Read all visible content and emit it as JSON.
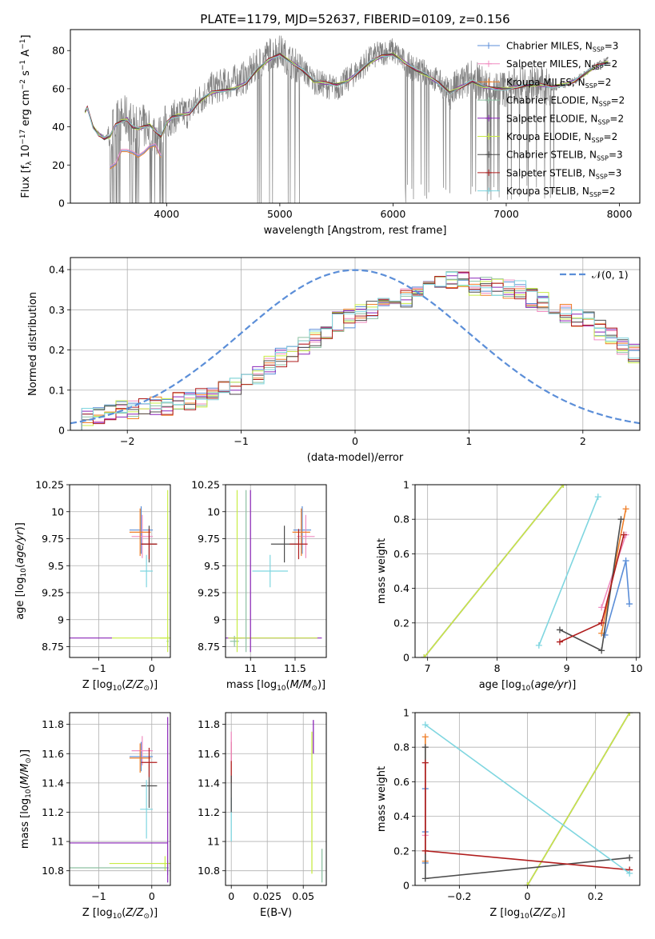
{
  "figure": {
    "title": "PLATE=1179, MJD=52637, FIBERID=0109, z=0.156",
    "colors": {
      "Chabrier MILES": "#5b8ed8",
      "Salpeter MILES": "#f08cc0",
      "Kroupa MILES": "#ef7f28",
      "Chabrier ELODIE": "#8dc0a2",
      "Salpeter ELODIE": "#8a25b8",
      "Kroupa ELODIE": "#c8ec45",
      "Chabrier STELIB": "#4d4d4d",
      "Salpeter STELIB": "#b01d1d",
      "Kroupa STELIB": "#7fd6e0"
    }
  },
  "chart_data": [
    {
      "id": "spectrum",
      "type": "line",
      "title": "PLATE=1179, MJD=52637, FIBERID=0109, z=0.156",
      "xlabel": "wavelength [Angstrom, rest frame]",
      "ylabel": "Flux [f_λ 10^-17 erg cm^-2 s^-1 A^-1]",
      "xlim": [
        3150,
        8180
      ],
      "ylim": [
        0,
        91
      ],
      "xticks": [
        4000,
        5000,
        6000,
        7000,
        8000
      ],
      "yticks": [
        0,
        20,
        40,
        60,
        80
      ],
      "grid": false,
      "legend_position": "top-right",
      "legend": [
        {
          "label": "Chabrier MILES, N_SSP=3",
          "color": "#5b8ed8"
        },
        {
          "label": "Salpeter MILES, N_SSP=2",
          "color": "#f08cc0"
        },
        {
          "label": "Kroupa MILES, N_SSP=2",
          "color": "#ef7f28"
        },
        {
          "label": "Chabrier ELODIE, N_SSP=2",
          "color": "#8dc0a2"
        },
        {
          "label": "Salpeter ELODIE, N_SSP=2",
          "color": "#8a25b8"
        },
        {
          "label": "Kroupa ELODIE, N_SSP=2",
          "color": "#c8ec45"
        },
        {
          "label": "Chabrier STELIB, N_SSP=3",
          "color": "#4d4d4d"
        },
        {
          "label": "Salpeter STELIB, N_SSP=3",
          "color": "#b01d1d"
        },
        {
          "label": "Kroupa STELIB, N_SSP=2",
          "color": "#7fd6e0"
        }
      ],
      "data_spectrum": {
        "color": "#808080",
        "x": [
          3280,
          3300,
          3350,
          3400,
          3450,
          3500,
          3550,
          3600,
          3650,
          3700,
          3750,
          3800,
          3850,
          3900,
          3950,
          4000,
          4050,
          4100,
          4200,
          4300,
          4400,
          4500,
          4600,
          4700,
          4800,
          4900,
          5000,
          5100,
          5200,
          5300,
          5400,
          5500,
          5600,
          5700,
          5800,
          5900,
          6000,
          6100,
          6200,
          6300,
          6400,
          6500,
          6600,
          6700,
          6800,
          6900,
          7000,
          7100,
          7200,
          7300,
          7400,
          7500,
          7600,
          7700,
          7800,
          7860,
          7900
        ],
        "y": [
          48,
          50,
          40,
          37,
          35,
          36,
          42,
          44,
          45,
          41,
          40,
          40,
          41,
          37,
          34,
          42,
          45,
          46,
          48,
          55,
          60,
          62,
          64,
          66,
          72,
          78,
          80,
          74,
          70,
          64,
          62,
          60,
          65,
          70,
          76,
          79,
          80,
          74,
          70,
          68,
          64,
          58,
          62,
          66,
          62,
          60,
          60,
          62,
          63,
          62,
          60,
          62,
          64,
          68,
          72,
          74,
          75
        ]
      },
      "model_spectrum": {
        "x": [
          3280,
          3300,
          3350,
          3400,
          3450,
          3500,
          3550,
          3600,
          3650,
          3700,
          3750,
          3800,
          3850,
          3900,
          3950,
          4000,
          4050,
          4100,
          4200,
          4300,
          4400,
          4500,
          4600,
          4700,
          4800,
          4900,
          5000,
          5100,
          5200,
          5300,
          5400,
          5500,
          5600,
          5700,
          5800,
          5900,
          6000,
          6100,
          6200,
          6300,
          6400,
          6500,
          6600,
          6700,
          6800,
          6900,
          7000,
          7100,
          7200,
          7300,
          7400,
          7500,
          7600,
          7700,
          7800,
          7860,
          7900
        ],
        "y": [
          48,
          50,
          40,
          36,
          34,
          35,
          41,
          43,
          44,
          40,
          39,
          40,
          41,
          38,
          35,
          42,
          45,
          46,
          47,
          54,
          58,
          59,
          60,
          63,
          70,
          75,
          78,
          74,
          70,
          64,
          63,
          62,
          64,
          69,
          74,
          77,
          78,
          74,
          70,
          67,
          63,
          58,
          61,
          64,
          61,
          60,
          60,
          61,
          62,
          62,
          61,
          62,
          64,
          68,
          72,
          73,
          74
        ],
        "low_branch_x": [
          3500,
          3550,
          3600,
          3650,
          3700,
          3750,
          3800,
          3850,
          3900,
          3950
        ],
        "low_branch_y": [
          18,
          20,
          27,
          27,
          26,
          24,
          26,
          29,
          30,
          24
        ]
      }
    },
    {
      "id": "residuals",
      "type": "line",
      "xlabel": "(data-model)/error",
      "ylabel": "Normed distribution",
      "xlim": [
        -2.5,
        2.5
      ],
      "ylim": [
        0,
        0.43
      ],
      "xticks": [
        -2,
        -1,
        0,
        1,
        2
      ],
      "yticks": [
        0.0,
        0.1,
        0.2,
        0.3,
        0.4
      ],
      "grid": true,
      "legend_position": "top-right",
      "legend": [
        {
          "label": "𝒩(0, 1)",
          "color": "#5b8ed8"
        }
      ],
      "bin_width": 0.1,
      "bin_start": -2.5,
      "histogram_mean": [
        0.02,
        0.03,
        0.04,
        0.04,
        0.05,
        0.05,
        0.06,
        0.06,
        0.06,
        0.07,
        0.07,
        0.08,
        0.09,
        0.1,
        0.11,
        0.12,
        0.14,
        0.16,
        0.18,
        0.19,
        0.21,
        0.23,
        0.25,
        0.27,
        0.28,
        0.29,
        0.3,
        0.31,
        0.32,
        0.33,
        0.34,
        0.35,
        0.36,
        0.37,
        0.37,
        0.36,
        0.36,
        0.36,
        0.35,
        0.35,
        0.33,
        0.32,
        0.3,
        0.29,
        0.28,
        0.27,
        0.25,
        0.23,
        0.21,
        0.19,
        0.17,
        0.16,
        0.14,
        0.13,
        0.12,
        0.11,
        0.1,
        0.1,
        0.09,
        0.09,
        0.09,
        0.08,
        0.08,
        0.09,
        0.09,
        0.08,
        0.08,
        0.08,
        0.09,
        0.09
      ]
    },
    {
      "id": "z-age",
      "type": "scatter",
      "xlabel": "Z [log10(Z/Z⊙)]",
      "ylabel": "age [log10(age/yr)]",
      "xlim": [
        -1.55,
        0.35
      ],
      "ylim": [
        8.65,
        10.25
      ],
      "xticks": [
        -1,
        0
      ],
      "yticks": [
        8.75,
        9.0,
        9.25,
        9.5,
        9.75,
        10.0,
        10.25
      ],
      "grid": true
    },
    {
      "id": "mass-age",
      "type": "scatter",
      "xlabel": "mass [log10(M/M⊙)]",
      "ylabel": "",
      "xlim": [
        10.72,
        11.85
      ],
      "ylim": [
        8.65,
        10.25
      ],
      "xticks": [
        11.0,
        11.5
      ],
      "yticks": [
        8.75,
        9.0,
        9.25,
        9.5,
        9.75,
        10.0,
        10.25
      ],
      "grid": true
    },
    {
      "id": "age-weight",
      "type": "line",
      "xlabel": "age [log10(age/yr)]",
      "ylabel": "mass weight",
      "xlim": [
        6.82,
        10.05
      ],
      "ylim": [
        0,
        1.0
      ],
      "xticks": [
        7,
        8,
        9,
        10
      ],
      "yticks": [
        0.0,
        0.2,
        0.4,
        0.6,
        0.8,
        1.0
      ],
      "grid": true
    },
    {
      "id": "z-mass",
      "type": "scatter",
      "xlabel": "Z [log10(Z/Z⊙)]",
      "ylabel": "mass [log10(M/M⊙)]",
      "xlim": [
        -1.55,
        0.35
      ],
      "ylim": [
        10.7,
        11.88
      ],
      "xticks": [
        -1,
        0
      ],
      "yticks": [
        10.8,
        11.0,
        11.2,
        11.4,
        11.6,
        11.8
      ],
      "grid": true
    },
    {
      "id": "ebv-mass",
      "type": "scatter",
      "xlabel": "E(B-V)",
      "ylabel": "",
      "xlim": [
        -0.004,
        0.066
      ],
      "ylim": [
        10.7,
        11.88
      ],
      "xticks": [
        0.0,
        0.025,
        0.05
      ],
      "yticks": [
        10.8,
        11.0,
        11.2,
        11.4,
        11.6,
        11.8
      ],
      "grid": true
    },
    {
      "id": "z-weight",
      "type": "line",
      "xlabel": "Z [log10(Z/Z⊙)]",
      "ylabel": "mass weight",
      "xlim": [
        -0.33,
        0.33
      ],
      "ylim": [
        0,
        1.0
      ],
      "xticks": [
        -0.2,
        0.0,
        0.2
      ],
      "yticks": [
        0.0,
        0.2,
        0.4,
        0.6,
        0.8,
        1.0
      ],
      "grid": true
    }
  ],
  "models": [
    {
      "name": "Chabrier MILES",
      "color": "#5b8ed8",
      "Z": -0.2,
      "Zerr": 0.22,
      "age": 9.83,
      "ageErr": 0.22,
      "mass": 11.58,
      "massErr": 0.1,
      "ebv": 0.0,
      "ebvErr": 0.0,
      "ssp_age": [
        9.55,
        9.85,
        9.9
      ],
      "ssp_Z": [
        -0.3,
        -0.3,
        -0.3
      ],
      "ssp_w": [
        0.13,
        0.56,
        0.31
      ]
    },
    {
      "name": "Salpeter MILES",
      "color": "#f08cc0",
      "Z": -0.18,
      "Zerr": 0.2,
      "age": 9.77,
      "ageErr": 0.2,
      "mass": 11.62,
      "massErr": 0.1,
      "ebv": 0.0,
      "ebvErr": 0.0,
      "ssp_age": [
        9.5,
        9.85
      ],
      "ssp_Z": [
        -0.3,
        -0.3
      ],
      "ssp_w": [
        0.29,
        0.71
      ]
    },
    {
      "name": "Kroupa MILES",
      "color": "#ef7f28",
      "Z": -0.22,
      "Zerr": 0.2,
      "age": 9.81,
      "ageErr": 0.22,
      "mass": 11.57,
      "massErr": 0.1,
      "ebv": 0.0,
      "ebvErr": 0.0,
      "ssp_age": [
        9.5,
        9.85
      ],
      "ssp_Z": [
        -0.3,
        -0.3
      ],
      "ssp_w": [
        0.14,
        0.86
      ]
    },
    {
      "name": "Chabrier ELODIE",
      "color": "#8dc0a2",
      "Z": 0.3,
      "Zerr": 0.02,
      "age": 8.8,
      "ageErr": 0.05,
      "mass": 10.82,
      "massErr": 0.05,
      "ebv": 0.06,
      "ebvErr": 0.0,
      "ssp_age": [
        6.95,
        8.95
      ],
      "ssp_Z": [
        0.0,
        0.3
      ],
      "ssp_w": [
        0.0,
        1.0
      ]
    },
    {
      "name": "Salpeter ELODIE",
      "color": "#8a25b8",
      "Z": 0.3,
      "Zerr": 0.0,
      "age": 8.83,
      "ageErr": 0.0,
      "mass": 10.99,
      "massErr": 0.0,
      "ebv": 0.06,
      "ebvErr": 0.0,
      "ssp_age": [
        6.95,
        8.95
      ],
      "ssp_Z": [
        0.0,
        0.3
      ],
      "ssp_w": [
        0.0,
        1.0
      ]
    },
    {
      "name": "Kroupa ELODIE",
      "color": "#c8ec45",
      "Z": 0.25,
      "Zerr": 0.1,
      "age": 8.83,
      "ageErr": 0.0,
      "mass": 10.85,
      "massErr": 0.05,
      "ebv": 0.058,
      "ebvErr": 0.0,
      "ssp_age": [
        6.95,
        8.95
      ],
      "ssp_Z": [
        0.0,
        0.3
      ],
      "ssp_w": [
        0.0,
        1.0
      ]
    },
    {
      "name": "Chabrier STELIB",
      "color": "#4d4d4d",
      "Z": -0.05,
      "Zerr": 0.15,
      "age": 9.7,
      "ageErr": 0.17,
      "mass": 11.38,
      "massErr": 0.15,
      "ebv": 0.0,
      "ebvErr": 0.0,
      "ssp_age": [
        8.9,
        9.5,
        9.78
      ],
      "ssp_Z": [
        0.3,
        -0.3,
        -0.3
      ],
      "ssp_w": [
        0.16,
        0.04,
        0.8
      ]
    },
    {
      "name": "Salpeter STELIB",
      "color": "#b01d1d",
      "Z": -0.05,
      "Zerr": 0.15,
      "age": 9.7,
      "ageErr": 0.14,
      "mass": 11.54,
      "massErr": 0.1,
      "ebv": 0.0,
      "ebvErr": 0.0,
      "ssp_age": [
        8.9,
        9.5,
        9.82
      ],
      "ssp_Z": [
        0.3,
        -0.3,
        -0.3
      ],
      "ssp_w": [
        0.09,
        0.2,
        0.71
      ]
    },
    {
      "name": "Kroupa STELIB",
      "color": "#7fd6e0",
      "Z": -0.1,
      "Zerr": 0.12,
      "age": 9.45,
      "ageErr": 0.15,
      "mass": 11.22,
      "massErr": 0.2,
      "ebv": 0.0,
      "ebvErr": 0.0,
      "ssp_age": [
        8.6,
        9.45
      ],
      "ssp_Z": [
        0.3,
        -0.3
      ],
      "ssp_w": [
        0.07,
        0.93
      ]
    }
  ]
}
